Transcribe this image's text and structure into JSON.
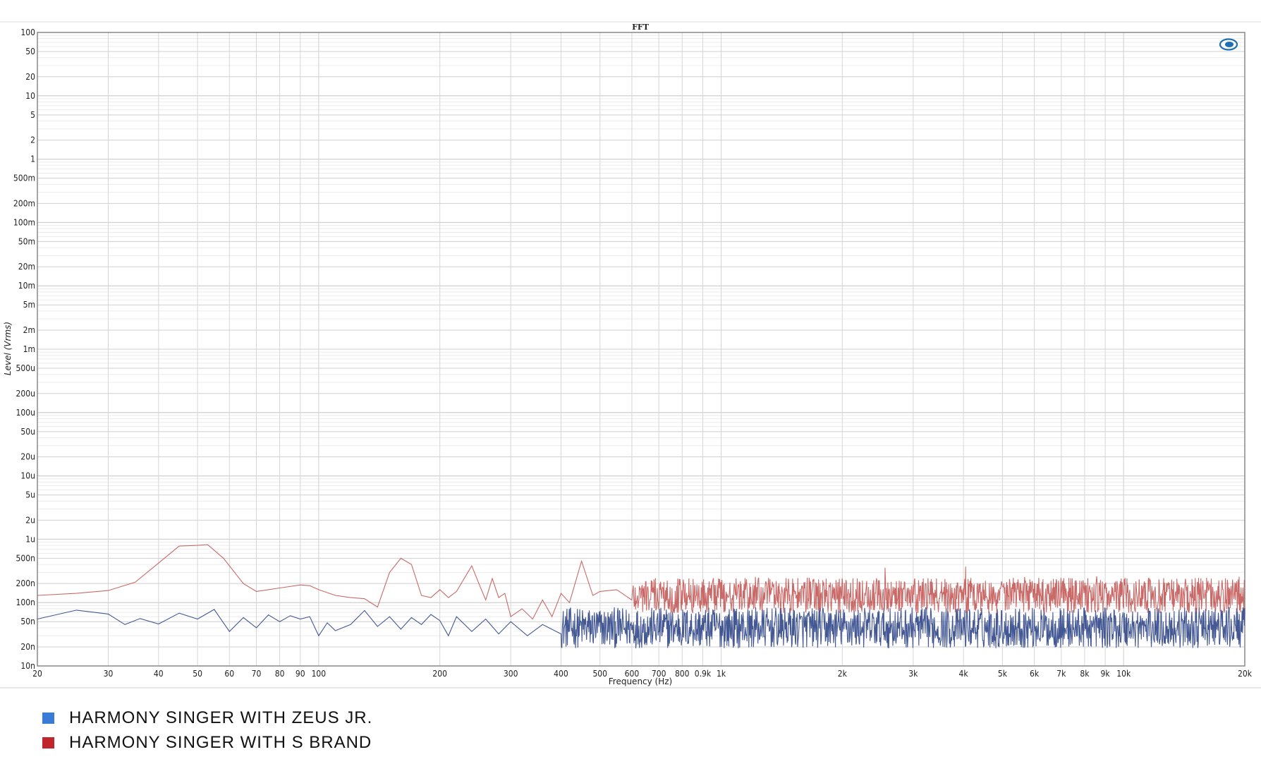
{
  "chart_data": {
    "type": "line",
    "title": "FFT",
    "xlabel": "Frequency (Hz)",
    "ylabel": "Level (Vrms)",
    "x_scale": "log",
    "y_scale": "log",
    "xlim": [
      20,
      20000
    ],
    "ylim": [
      1e-08,
      100
    ],
    "grid": true,
    "legend_position": "bottom-left",
    "x_ticks": [
      {
        "v": 20,
        "label": "20"
      },
      {
        "v": 30,
        "label": "30"
      },
      {
        "v": 40,
        "label": "40"
      },
      {
        "v": 50,
        "label": "50"
      },
      {
        "v": 60,
        "label": "60"
      },
      {
        "v": 70,
        "label": "70"
      },
      {
        "v": 80,
        "label": "80"
      },
      {
        "v": 90,
        "label": "90"
      },
      {
        "v": 100,
        "label": "100"
      },
      {
        "v": 200,
        "label": "200"
      },
      {
        "v": 300,
        "label": "300"
      },
      {
        "v": 400,
        "label": "400"
      },
      {
        "v": 500,
        "label": "500"
      },
      {
        "v": 600,
        "label": "600"
      },
      {
        "v": 700,
        "label": "700"
      },
      {
        "v": 800,
        "label": "800"
      },
      {
        "v": 900,
        "label": "0.9k"
      },
      {
        "v": 1000,
        "label": "1k"
      },
      {
        "v": 2000,
        "label": "2k"
      },
      {
        "v": 3000,
        "label": "3k"
      },
      {
        "v": 4000,
        "label": "4k"
      },
      {
        "v": 5000,
        "label": "5k"
      },
      {
        "v": 6000,
        "label": "6k"
      },
      {
        "v": 7000,
        "label": "7k"
      },
      {
        "v": 8000,
        "label": "8k"
      },
      {
        "v": 9000,
        "label": "9k"
      },
      {
        "v": 10000,
        "label": "10k"
      },
      {
        "v": 20000,
        "label": "20k"
      }
    ],
    "y_ticks": [
      {
        "v": 100,
        "label": "100"
      },
      {
        "v": 50,
        "label": "50"
      },
      {
        "v": 20,
        "label": "20"
      },
      {
        "v": 10,
        "label": "10"
      },
      {
        "v": 5,
        "label": "5"
      },
      {
        "v": 2,
        "label": "2"
      },
      {
        "v": 1,
        "label": "1"
      },
      {
        "v": 0.5,
        "label": "500m"
      },
      {
        "v": 0.2,
        "label": "200m"
      },
      {
        "v": 0.1,
        "label": "100m"
      },
      {
        "v": 0.05,
        "label": "50m"
      },
      {
        "v": 0.02,
        "label": "20m"
      },
      {
        "v": 0.01,
        "label": "10m"
      },
      {
        "v": 0.005,
        "label": "5m"
      },
      {
        "v": 0.002,
        "label": "2m"
      },
      {
        "v": 0.001,
        "label": "1m"
      },
      {
        "v": 0.0005,
        "label": "500u"
      },
      {
        "v": 0.0002,
        "label": "200u"
      },
      {
        "v": 0.0001,
        "label": "100u"
      },
      {
        "v": 5e-05,
        "label": "50u"
      },
      {
        "v": 2e-05,
        "label": "20u"
      },
      {
        "v": 1e-05,
        "label": "10u"
      },
      {
        "v": 5e-06,
        "label": "5u"
      },
      {
        "v": 2e-06,
        "label": "2u"
      },
      {
        "v": 1e-06,
        "label": "1u"
      },
      {
        "v": 5e-07,
        "label": "500n"
      },
      {
        "v": 2e-07,
        "label": "200n"
      },
      {
        "v": 1e-07,
        "label": "100n"
      },
      {
        "v": 5e-08,
        "label": "50n"
      },
      {
        "v": 2e-08,
        "label": "20n"
      },
      {
        "v": 1e-08,
        "label": "10n"
      }
    ],
    "series": [
      {
        "name": "HARMONY SINGER WITH ZEUS JR.",
        "color": "#3a4f8e",
        "noise_band": {
          "from_hz": 400,
          "to_hz": 20000,
          "center": 4e-08,
          "spread": 2.1
        },
        "x": [
          20,
          25,
          30,
          33,
          36,
          40,
          45,
          50,
          55,
          60,
          65,
          70,
          75,
          80,
          85,
          90,
          95,
          100,
          105,
          110,
          120,
          130,
          140,
          150,
          160,
          170,
          180,
          190,
          200,
          210,
          220,
          240,
          260,
          280,
          300,
          330,
          360,
          400
        ],
        "y": [
          5.5e-08,
          7.6e-08,
          6.6e-08,
          4.5e-08,
          5.6e-08,
          4.6e-08,
          6.8e-08,
          5.5e-08,
          7.8e-08,
          3.5e-08,
          5.8e-08,
          4e-08,
          6.4e-08,
          5e-08,
          6.2e-08,
          5.5e-08,
          6e-08,
          3e-08,
          4.8e-08,
          3.6e-08,
          4.5e-08,
          7.5e-08,
          4.2e-08,
          6e-08,
          3.8e-08,
          5.8e-08,
          4.5e-08,
          6.5e-08,
          5.2e-08,
          3e-08,
          6e-08,
          3.5e-08,
          5.5e-08,
          3.2e-08,
          5e-08,
          3e-08,
          4.5e-08,
          3.2e-08
        ]
      },
      {
        "name": "HARMONY SINGER WITH S BRAND",
        "color": "#c0504d",
        "noise_band": {
          "from_hz": 600,
          "to_hz": 20000,
          "center": 1.3e-07,
          "spread": 1.9
        },
        "x": [
          20,
          25,
          30,
          35,
          40,
          45,
          50,
          53,
          58,
          65,
          70,
          80,
          90,
          95,
          100,
          110,
          120,
          130,
          140,
          150,
          160,
          170,
          180,
          190,
          200,
          210,
          220,
          240,
          250,
          260,
          270,
          280,
          290,
          300,
          320,
          340,
          360,
          380,
          400,
          420,
          450,
          480,
          500,
          550,
          600
        ],
        "y": [
          1.3e-07,
          1.4e-07,
          1.55e-07,
          2.1e-07,
          4.2e-07,
          7.8e-07,
          8e-07,
          8.2e-07,
          5e-07,
          2e-07,
          1.5e-07,
          1.7e-07,
          1.9e-07,
          1.85e-07,
          1.6e-07,
          1.3e-07,
          1.2e-07,
          1.15e-07,
          8.5e-08,
          3e-07,
          5e-07,
          4e-07,
          1.3e-07,
          1.2e-07,
          1.6e-07,
          1.2e-07,
          1.5e-07,
          3.8e-07,
          2e-07,
          1.1e-07,
          2.4e-07,
          1.2e-07,
          1.4e-07,
          6e-08,
          8e-08,
          5.5e-08,
          1.1e-07,
          6e-08,
          1.4e-07,
          1e-07,
          4.5e-07,
          1.3e-07,
          1.5e-07,
          1.6e-07,
          1.1e-07
        ]
      }
    ]
  },
  "legend": [
    {
      "label": "HARMONY SINGER WITH ZEUS JR.",
      "color": "#3a7bd5"
    },
    {
      "label": "HARMONY SINGER WITH S BRAND",
      "color": "#c0262b"
    }
  ],
  "logo_icon": "ap-logo-icon"
}
